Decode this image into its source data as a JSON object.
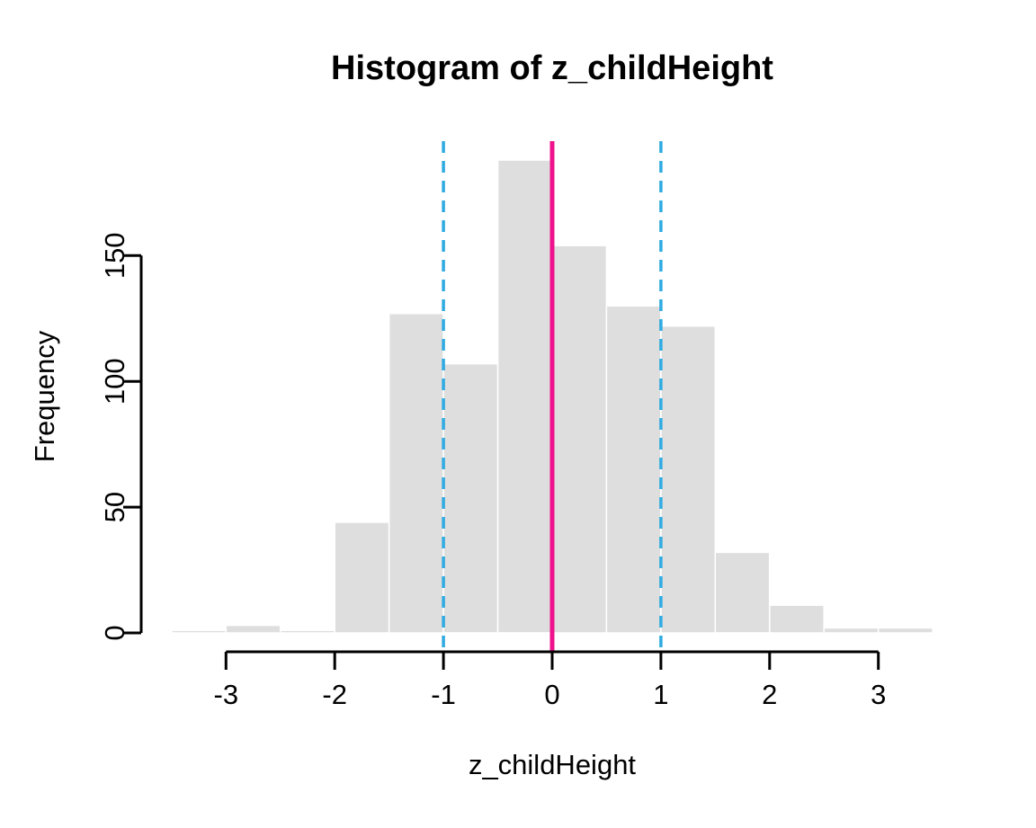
{
  "figure": {
    "title": "Histogram of z_childHeight",
    "xlabel": "z_childHeight",
    "ylabel": "Frequency"
  },
  "chart_data": {
    "type": "bar",
    "subtype": "histogram",
    "title": "Histogram of z_childHeight",
    "xlabel": "z_childHeight",
    "ylabel": "Frequency",
    "bin_breaks": [
      -3.5,
      -3.0,
      -2.5,
      -2.0,
      -1.5,
      -1.0,
      -0.5,
      0.0,
      0.5,
      1.0,
      1.5,
      2.0,
      2.5,
      3.0,
      3.5
    ],
    "counts": [
      1,
      3,
      1,
      44,
      127,
      107,
      188,
      154,
      130,
      122,
      32,
      11,
      2,
      2
    ],
    "x_ticks": [
      -3,
      -2,
      -1,
      0,
      1,
      2,
      3
    ],
    "y_ticks": [
      0,
      50,
      100,
      150
    ],
    "xlim": [
      -3.5,
      3.5
    ],
    "ylim": [
      0,
      188
    ],
    "grid": false,
    "legend": "none",
    "bar_fill": "#DEDEDE",
    "bar_border": "#FFFFFF",
    "axis_color": "#000000",
    "vlines": [
      {
        "x": 0,
        "style": "solid",
        "color": "#EF128C",
        "width": 5
      },
      {
        "x": -1,
        "style": "dashed",
        "color": "#2FABE1",
        "width": 3.5
      },
      {
        "x": 1,
        "style": "dashed",
        "color": "#2FABE1",
        "width": 3.5
      }
    ]
  }
}
